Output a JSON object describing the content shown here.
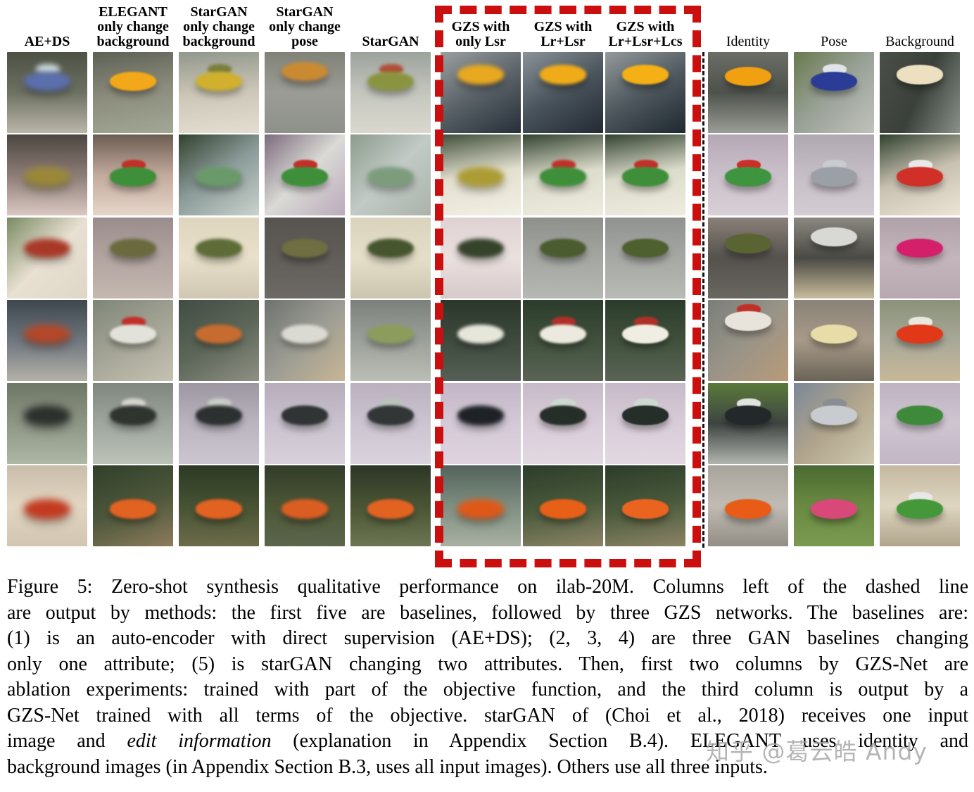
{
  "figure": {
    "watermark": "知乎 @葛云皓 Andy",
    "colors": {
      "highlight_box_red": "#cb0e0e",
      "separator_black": "#141414",
      "page_background": "#ffffff",
      "caption_text": "#000000",
      "watermark_gray": "#a5a5a5"
    }
  },
  "grid": {
    "columns": [
      {
        "id": "ae-ds",
        "label": "AE+DS",
        "bold": true
      },
      {
        "id": "elegant-bg",
        "label": "ELEGANT\nonly change\nbackground",
        "bold": true
      },
      {
        "id": "stargan-bg",
        "label": "StarGAN\nonly change\nbackground",
        "bold": true
      },
      {
        "id": "stargan-pose",
        "label": "StarGAN\nonly change\npose",
        "bold": true
      },
      {
        "id": "stargan",
        "label": "StarGAN",
        "bold": true
      },
      {
        "id": "gzs-lsr",
        "label": "GZS with\nonly Lsr",
        "bold": true
      },
      {
        "id": "gzs-lr-lsr",
        "label": "GZS with\nLr+Lsr",
        "bold": true
      },
      {
        "id": "gzs-lr-lsr-lcs",
        "label": "GZS with\nLr+Lsr+Lcs",
        "bold": true
      },
      {
        "id": "identity",
        "label": "Identity",
        "bold": false
      },
      {
        "id": "pose",
        "label": "Pose",
        "bold": false
      },
      {
        "id": "background",
        "label": "Background",
        "bold": false
      }
    ],
    "rows": [
      {
        "subject": "yellow-school-bus",
        "vy": 24,
        "cells": [
          {
            "a": 180,
            "g": [
              "#4c5144",
              "#6d7162",
              "#bbb6aa"
            ],
            "v": "#5b6fae",
            "w": "#cfdcdc",
            "b": 4
          },
          {
            "a": 170,
            "g": [
              "#5c6154",
              "#8c8c7c",
              "#a2a896"
            ],
            "v": "#f2a818",
            "b": 1
          },
          {
            "a": 175,
            "g": [
              "#91978c",
              "#cbc6b6",
              "#e4ded2"
            ],
            "v": "#d0b02c",
            "w": "#7a7f3a",
            "b": 2
          },
          {
            "a": 180,
            "g": [
              "#808278",
              "#9c9c96",
              "#8e908a"
            ],
            "v": "#ca8a32",
            "b": 2.5,
            "y": 12
          },
          {
            "a": 180,
            "g": [
              "#9ca29c",
              "#c4c6be",
              "#dad8ce"
            ],
            "v": "#8a9440",
            "w": "#b05038",
            "b": 2
          },
          {
            "a": 150,
            "g": [
              "#9aa0a0",
              "#5a6268",
              "#262e38"
            ],
            "v": "#e8a820",
            "b": 3,
            "y": 16
          },
          {
            "a": 150,
            "g": [
              "#8a9298",
              "#4a545c",
              "#222a34"
            ],
            "v": "#f0ac18",
            "b": 2,
            "y": 16
          },
          {
            "a": 150,
            "g": [
              "#949a9c",
              "#4e585e",
              "#1f2830"
            ],
            "v": "#f4b014",
            "b": 1,
            "y": 16
          },
          {
            "a": 180,
            "g": [
              "#6a6e66",
              "#4e524c",
              "#9a9e96"
            ],
            "v": "#f0a010",
            "b": 0.5,
            "y": 18
          },
          {
            "a": 135,
            "g": [
              "#687a4e",
              "#9aa298",
              "#c0c2bc"
            ],
            "v": "#2a3c96",
            "w": "#e0e4e8",
            "b": 0.5
          },
          {
            "a": 115,
            "g": [
              "#4a5048",
              "#3a403a",
              "#8a908a"
            ],
            "v": "#ece0c0",
            "b": 0.5,
            "y": 16
          }
        ]
      },
      {
        "subject": "green-suv-red-roof",
        "vy": 40,
        "cells": [
          {
            "a": 180,
            "g": [
              "#4c4640",
              "#8c7c76",
              "#dac9c2"
            ],
            "v": "#9a8838",
            "b": 5
          },
          {
            "a": 180,
            "g": [
              "#6c5c52",
              "#c2aa9c",
              "#e6d6ca"
            ],
            "v": "#3f8f3a",
            "w": "#c23028",
            "b": 1
          },
          {
            "a": 145,
            "g": [
              "#31412f",
              "#8c9c9a",
              "#cad2cc"
            ],
            "v": "#6a9a6a",
            "b": 3
          },
          {
            "a": 135,
            "g": [
              "#7c6c7c",
              "#dadad6",
              "#baaaba"
            ],
            "v": "#3f8f3a",
            "w": "#c23028",
            "b": 1
          },
          {
            "a": 135,
            "g": [
              "#8c9c8c",
              "#c2cac6",
              "#aab2aa"
            ],
            "v": "#7c9c7c",
            "b": 3
          },
          {
            "a": 170,
            "g": [
              "#3f4f3a",
              "#e4e0d0",
              "#f2efe4"
            ],
            "v": "#ac9c34",
            "b": 4
          },
          {
            "a": 170,
            "g": [
              "#33432f",
              "#dcdccc",
              "#efecdf"
            ],
            "v": "#3f8f3a",
            "w": "#c23028",
            "b": 1.5
          },
          {
            "a": 170,
            "g": [
              "#33432f",
              "#dcdccc",
              "#efecdf"
            ],
            "v": "#3f8f3a",
            "w": "#c23028",
            "b": 1
          },
          {
            "a": 180,
            "g": [
              "#b4a8b4",
              "#cac0ca",
              "#d8d0d6"
            ],
            "v": "#3f9440",
            "w": "#cc2f28",
            "b": 0.5
          },
          {
            "a": 180,
            "g": [
              "#b0a8b0",
              "#c6bec6",
              "#d4ccd2"
            ],
            "v": "#9aa0a6",
            "w": "#c8ccd0",
            "b": 0.5
          },
          {
            "a": 160,
            "g": [
              "#31412f",
              "#c8c0b0",
              "#ece4d4"
            ],
            "v": "#d03028",
            "w": "#e8e8e8",
            "b": 0.5
          }
        ]
      },
      {
        "subject": "camouflage-tank",
        "vy": 26,
        "cells": [
          {
            "a": 135,
            "g": [
              "#7a8a62",
              "#e8e0d2",
              "#ded6c6"
            ],
            "v": "#a83828",
            "b": 4
          },
          {
            "a": 180,
            "g": [
              "#9a8c8c",
              "#b2a4a0",
              "#c4b8b0"
            ],
            "v": "#6a6a3e",
            "b": 2
          },
          {
            "a": 180,
            "g": [
              "#ddd5bd",
              "#e8e0ca",
              "#cfc7b1"
            ],
            "v": "#5e6c38",
            "b": 2
          },
          {
            "a": 180,
            "g": [
              "#57534f",
              "#615d59",
              "#6d6965"
            ],
            "v": "#6e6e42",
            "b": 1.5
          },
          {
            "a": 180,
            "g": [
              "#d9d3bd",
              "#e5dfc9",
              "#cbc5af"
            ],
            "v": "#47552f",
            "b": 2
          },
          {
            "a": 180,
            "g": [
              "#ded2d2",
              "#eae0de",
              "#d6caca"
            ],
            "v": "#35432a",
            "b": 3
          },
          {
            "a": 180,
            "g": [
              "#8e908c",
              "#a4a6a2",
              "#b6b8b4"
            ],
            "v": "#4a5c30",
            "b": 1.5
          },
          {
            "a": 180,
            "g": [
              "#909290",
              "#a6a8a4",
              "#b8bab6"
            ],
            "v": "#4e6030",
            "b": 1
          },
          {
            "a": 180,
            "g": [
              "#8a8078",
              "#55524e",
              "#6a6660"
            ],
            "v": "#5a6432",
            "b": 0.5,
            "y": 20
          },
          {
            "a": 180,
            "g": [
              "#8a8880",
              "#4a4a44",
              "#c8bc9c"
            ],
            "v": "#d8d8d4",
            "b": 0.5,
            "y": 12
          },
          {
            "a": 180,
            "g": [
              "#b0a0a8",
              "#c4b4bc",
              "#b8a8b0"
            ],
            "v": "#d4206a",
            "b": 0.5
          }
        ]
      },
      {
        "subject": "white-bus-truck",
        "vy": 30,
        "cells": [
          {
            "a": 180,
            "g": [
              "#3e464e",
              "#6e767e",
              "#b4b0a8"
            ],
            "v": "#b44828",
            "b": 5
          },
          {
            "a": 150,
            "g": [
              "#7e8678",
              "#a4a496",
              "#c6c2b2"
            ],
            "v": "#e2e2da",
            "w": "#c23028",
            "b": 1.5
          },
          {
            "a": 150,
            "g": [
              "#414c44",
              "#5c6658",
              "#8e9084"
            ],
            "v": "#c66c30",
            "b": 2
          },
          {
            "a": 135,
            "g": [
              "#6e726e",
              "#9c9c94",
              "#c8b694"
            ],
            "v": "#dadad2",
            "b": 2
          },
          {
            "a": 180,
            "g": [
              "#7c807a",
              "#9ca09a",
              "#babeb4"
            ],
            "v": "#8c9c5c",
            "b": 2
          },
          {
            "a": 180,
            "g": [
              "#2c372c",
              "#3e4a3e",
              "#566056"
            ],
            "v": "#e6e6da",
            "b": 2.5
          },
          {
            "a": 180,
            "g": [
              "#2c3c2c",
              "#40503c",
              "#5a6456"
            ],
            "v": "#eceade",
            "w": "#b03028",
            "b": 1.5
          },
          {
            "a": 180,
            "g": [
              "#2c3c2c",
              "#40503c",
              "#5a6456"
            ],
            "v": "#f0eee2",
            "w": "#b03028",
            "b": 1
          },
          {
            "a": 135,
            "g": [
              "#7a7e7a",
              "#9a9488",
              "#b89a78"
            ],
            "v": "#e8e4dc",
            "w": "#c03028",
            "b": 0.5,
            "y": 14
          },
          {
            "a": 180,
            "g": [
              "#8a8278",
              "#a89a88",
              "#6a6458"
            ],
            "v": "#e8dca8",
            "b": 0.5
          },
          {
            "a": 180,
            "g": [
              "#8a9278",
              "#a8a898",
              "#c8b898"
            ],
            "v": "#e03818",
            "w": "#e8e8e0",
            "b": 0.5
          }
        ]
      },
      {
        "subject": "dark-military-atv",
        "vy": 28,
        "cells": [
          {
            "a": 180,
            "g": [
              "#6e7666",
              "#8e9686",
              "#aeb6a6"
            ],
            "v": "#2c302c",
            "b": 5
          },
          {
            "a": 180,
            "g": [
              "#7e867e",
              "#9ea69e",
              "#bcc2b8"
            ],
            "v": "#30342f",
            "w": "#d6d6ce",
            "b": 2
          },
          {
            "a": 180,
            "g": [
              "#9c96a2",
              "#bab4be",
              "#ccc6d0"
            ],
            "v": "#2c3030",
            "w": "#cacec8",
            "b": 2
          },
          {
            "a": 180,
            "g": [
              "#b6acba",
              "#cac2ce",
              "#d8d0da"
            ],
            "v": "#303434",
            "b": 1.5
          },
          {
            "a": 180,
            "g": [
              "#bab0be",
              "#ccc4d0",
              "#dad2dc"
            ],
            "v": "#323636",
            "w": "#bac2ba",
            "b": 1.5
          },
          {
            "a": 180,
            "g": [
              "#c2b6c6",
              "#d4c9d6",
              "#ded3de"
            ],
            "v": "#1e2226",
            "b": 3
          },
          {
            "a": 180,
            "g": [
              "#c6bac8",
              "#d8ccd8",
              "#e2d8e2"
            ],
            "v": "#262e2a",
            "w": "#ccd8d0",
            "b": 1.2
          },
          {
            "a": 180,
            "g": [
              "#c6bac8",
              "#d8ccd8",
              "#e2d8e2"
            ],
            "v": "#262e2a",
            "w": "#ccd8d0",
            "b": 0.8
          },
          {
            "a": 180,
            "g": [
              "#5a7a3a",
              "#3f4442",
              "#b0b4ae"
            ],
            "v": "#23282a",
            "w": "#e0e4dc",
            "b": 0.5
          },
          {
            "a": 135,
            "g": [
              "#7a8898",
              "#b0a48c",
              "#d0c8b0"
            ],
            "v": "#c8ccd0",
            "w": "#8a8e92",
            "b": 0.5
          },
          {
            "a": 180,
            "g": [
              "#beb2c0",
              "#cfc5d1",
              "#c2b6c4"
            ],
            "v": "#3f8a3a",
            "b": 0.5
          }
        ]
      },
      {
        "subject": "orange-pickup-truck",
        "vy": 42,
        "cells": [
          {
            "a": 180,
            "g": [
              "#cabcaa",
              "#e2d6c2",
              "#d2c6b2"
            ],
            "v": "#c23a20",
            "b": 5
          },
          {
            "a": 160,
            "g": [
              "#31402a",
              "#4c563a",
              "#8c7c5c"
            ],
            "v": "#e26222",
            "b": 1.5
          },
          {
            "a": 180,
            "g": [
              "#2c3824",
              "#465232",
              "#6c6c4a"
            ],
            "v": "#e26222",
            "b": 1.5
          },
          {
            "a": 180,
            "g": [
              "#313c2a",
              "#4c5636",
              "#5c664c"
            ],
            "v": "#da5e22",
            "b": 2
          },
          {
            "a": 180,
            "g": [
              "#2c3626",
              "#4a5434",
              "#6c7652"
            ],
            "v": "#e26222",
            "b": 1.5
          },
          {
            "a": 180,
            "g": [
              "#53635c",
              "#7e8e80",
              "#a8b0a2"
            ],
            "v": "#e05818",
            "b": 4
          },
          {
            "a": 170,
            "g": [
              "#2c3c2a",
              "#49593b",
              "#8c8466"
            ],
            "v": "#e86018",
            "b": 1.2
          },
          {
            "a": 170,
            "g": [
              "#2c3c2a",
              "#49593b",
              "#8c8466"
            ],
            "v": "#ea6420",
            "b": 0.8
          },
          {
            "a": 180,
            "g": [
              "#a8a49c",
              "#c0bcb4",
              "#928e86"
            ],
            "v": "#e85c18",
            "b": 0.5
          },
          {
            "a": 180,
            "g": [
              "#4a6a32",
              "#6a8a42",
              "#7a9a52"
            ],
            "v": "#d84878",
            "b": 0.5
          },
          {
            "a": 180,
            "g": [
              "#c4b8a0",
              "#ded6c0",
              "#b0a48c"
            ],
            "v": "#44983a",
            "w": "#e8e8e8",
            "b": 0.5
          }
        ]
      }
    ]
  },
  "caption": {
    "lines": [
      [
        {
          "t": "Figure 5: Zero-shot synthesis qualitative performance on ilab-20M. Columns left of the dashed line"
        }
      ],
      [
        {
          "t": "are output by methods: the first five are baselines, followed by three GZS networks. The baselines are:"
        }
      ],
      [
        {
          "t": "(1) is an auto-encoder with direct supervision (AE+DS); (2, 3, 4) are three GAN baselines changing"
        }
      ],
      [
        {
          "t": "only one attribute; (5) is starGAN changing two attributes. Then, first two columns by GZS-Net are"
        }
      ],
      [
        {
          "t": "ablation experiments: trained with part of the objective function, and the third column is output by a"
        }
      ],
      [
        {
          "t": "GZS-Net trained with all terms of the objective. starGAN of (Choi et al., 2018) receives one input"
        }
      ],
      [
        {
          "t": "image and "
        },
        {
          "t": "edit information",
          "i": true
        },
        {
          "t": " (explanation in Appendix Section B.4). ELEGANT uses identity and"
        }
      ],
      [
        {
          "t": "background images (in Appendix Section B.3, uses all input images). Others use all three inputs."
        }
      ]
    ]
  }
}
